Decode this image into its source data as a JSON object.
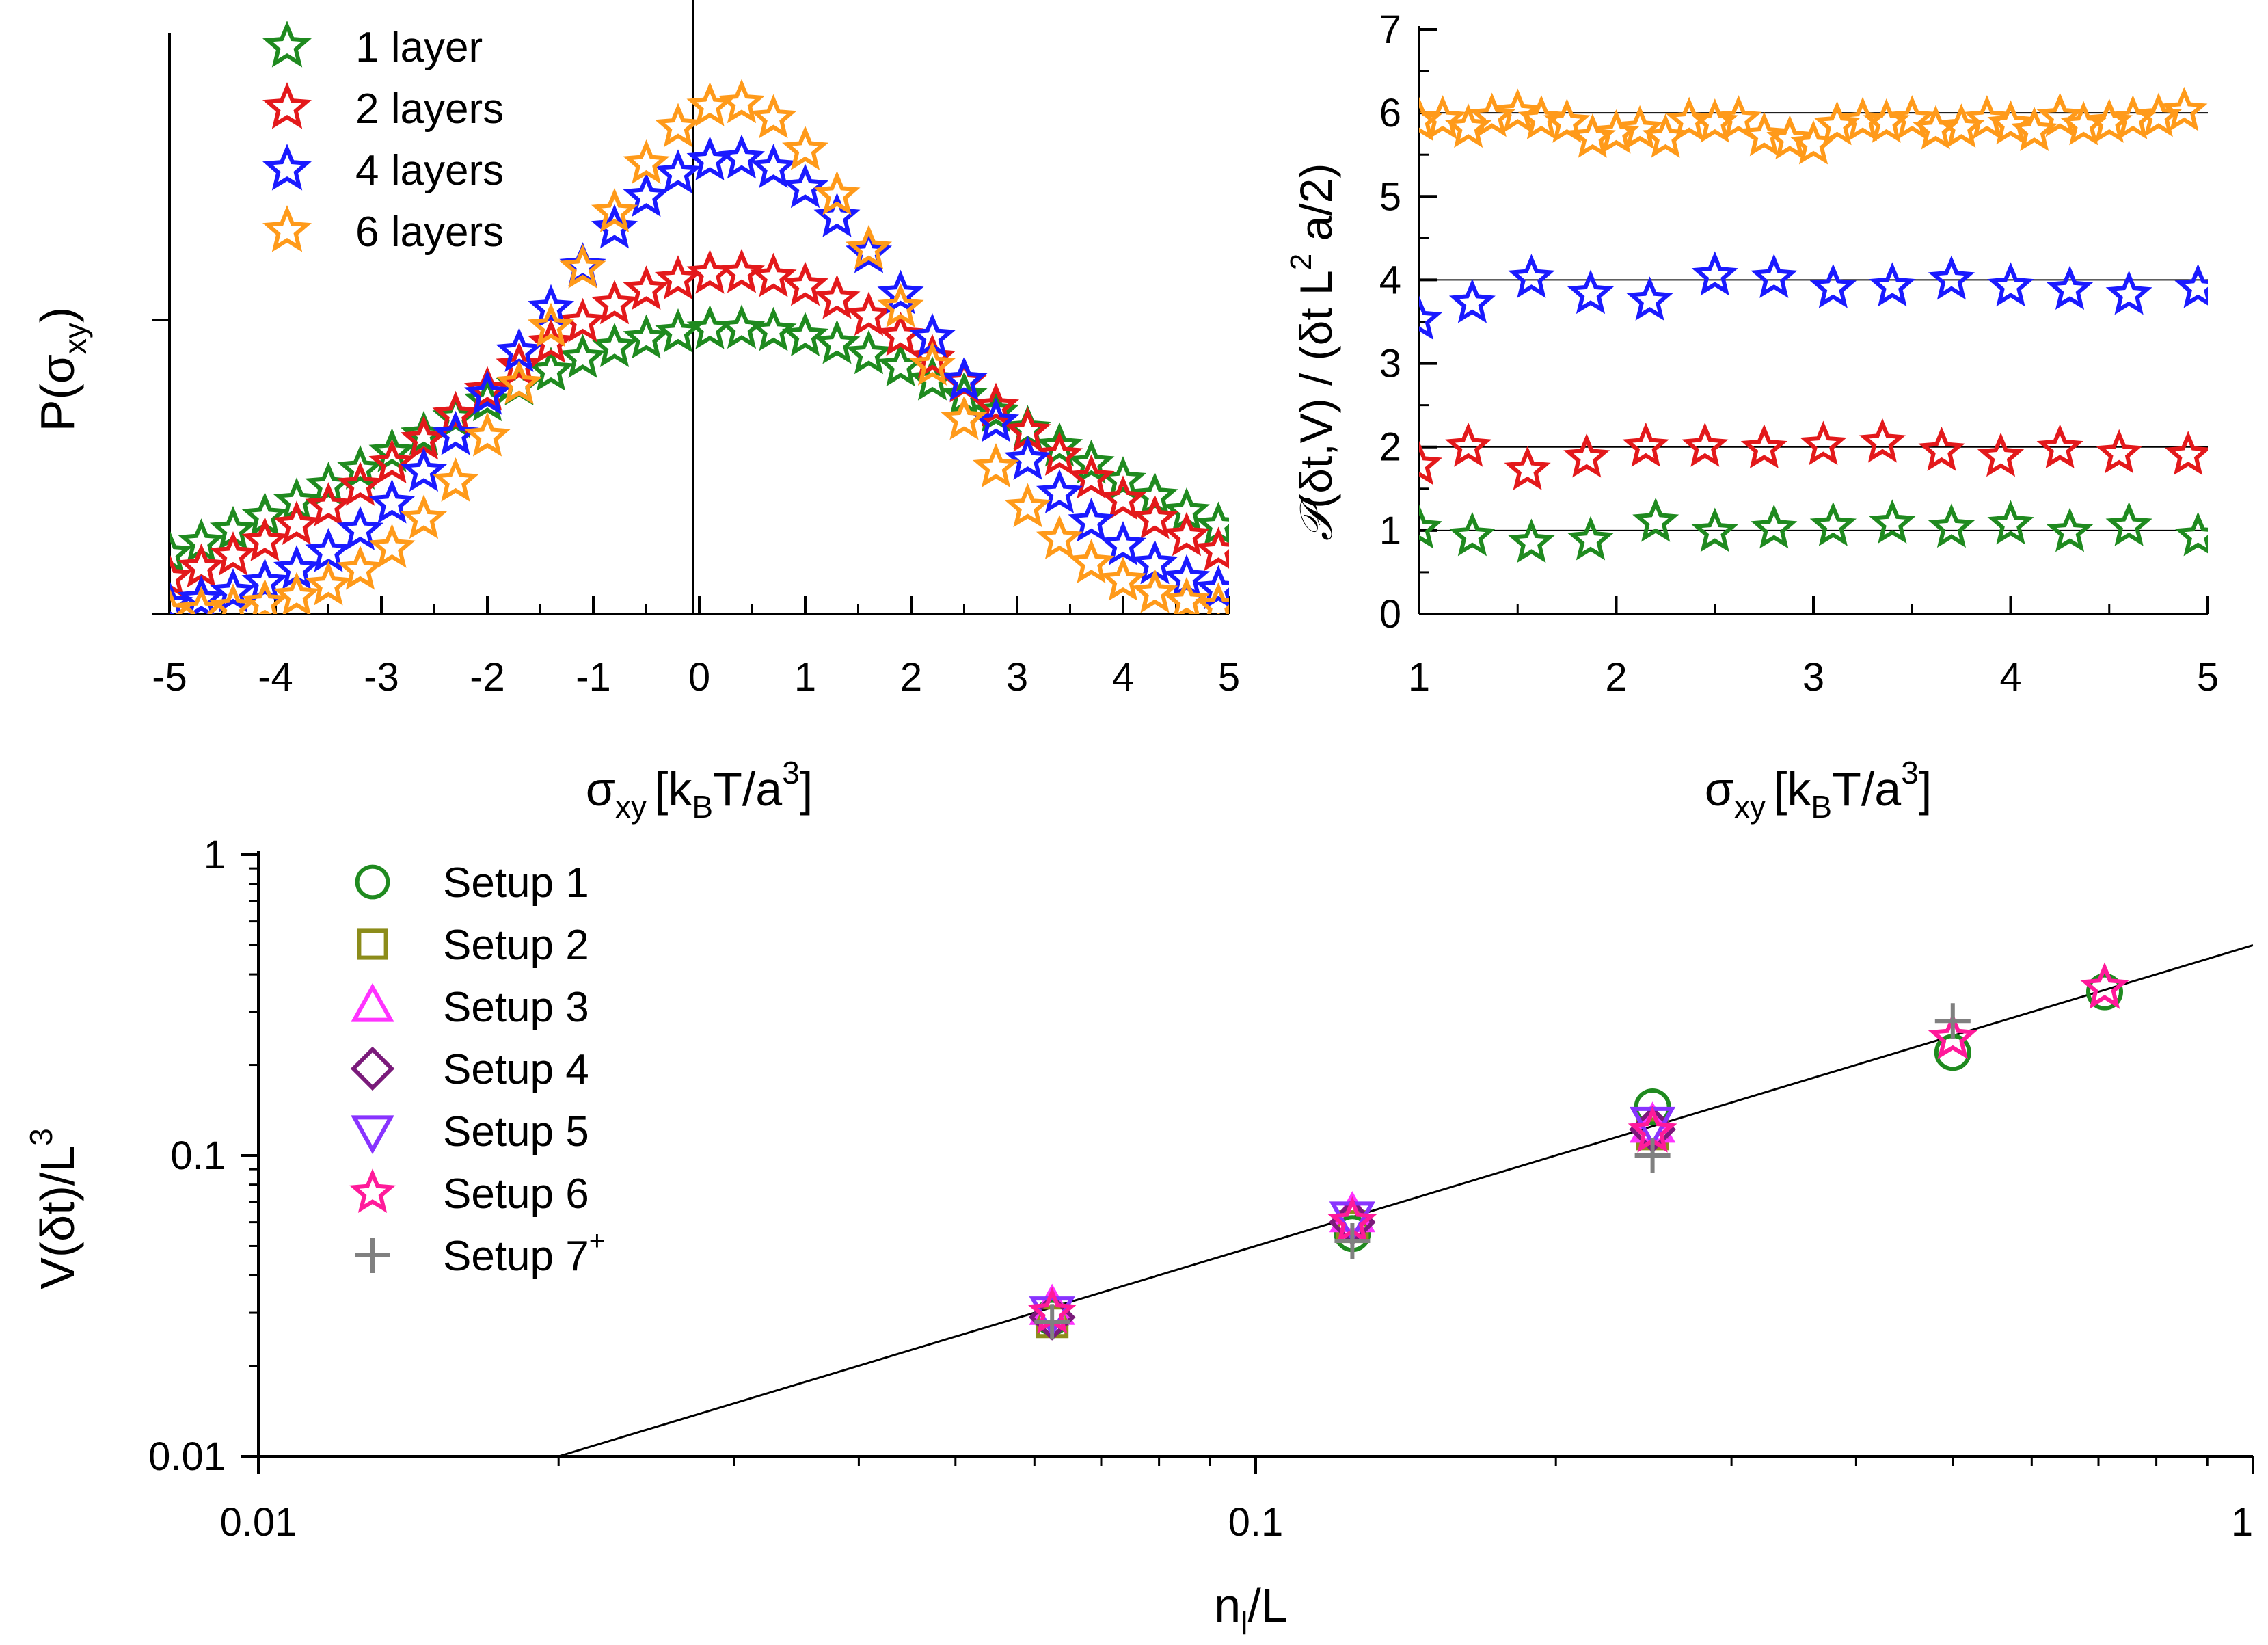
{
  "colors": {
    "green": "#1f8a1f",
    "red": "#e3191b",
    "blue": "#1a1aff",
    "orange": "#ff9a1a",
    "olive": "#8c8c1a",
    "magenta": "#ff33ff",
    "purple": "#7a1a7a",
    "violet": "#8833ff",
    "pink": "#ff1a9a",
    "gray": "#808080"
  },
  "chart_data": [
    {
      "type": "scatter",
      "panel": "top-left",
      "xlabel": "σxy [kBT/a³]",
      "xlabel_parts": {
        "sigma": "σ",
        "sigma_sub": "xy",
        "bracket_open": "[k",
        "kb_sub": "B",
        "mid": "T/a",
        "sup": "3",
        "bracket_close": "]"
      },
      "ylabel": "P(σxy)",
      "ylabel_parts": {
        "pre": "P(σ",
        "sub": "xy",
        "post": ")"
      },
      "xlim": [
        -5,
        5
      ],
      "ylim": [
        0,
        1
      ],
      "xticks": [
        "-5",
        "-4",
        "-3",
        "-2",
        "-1",
        "0",
        "1",
        "2",
        "3",
        "4",
        "5"
      ],
      "yticks_labeled": false,
      "vertical_line_at": 0,
      "legend_position": "top-left",
      "series": [
        {
          "name": "1 layer",
          "color": "green",
          "peak": 0.485,
          "sigma": 3.0,
          "mu": 0.3,
          "x_step": 0.3
        },
        {
          "name": "2 layers",
          "color": "red",
          "peak": 0.58,
          "sigma": 2.5,
          "mu": 0.3,
          "x_step": 0.3
        },
        {
          "name": "4 layers",
          "color": "blue",
          "peak": 0.775,
          "sigma": 1.9,
          "mu": 0.3,
          "x_step": 0.3
        },
        {
          "name": "6 layers",
          "color": "orange",
          "peak": 0.87,
          "sigma": 1.58,
          "mu": 0.3,
          "x_step": 0.3
        }
      ],
      "series_description": "Gaussian-shaped distributions centred near σxy≈0.3; markers every ~0.3 units from -5 to 5"
    },
    {
      "type": "scatter",
      "panel": "top-right",
      "xlabel": "σxy [kBT/a³]",
      "xlabel_parts": {
        "sigma": "σ",
        "sigma_sub": "xy",
        "bracket_open": "[k",
        "kb_sub": "B",
        "mid": "T/a",
        "sup": "3",
        "bracket_close": "]"
      },
      "ylabel": "𝒫(δt,V) / (δt L² a/2)",
      "ylabel_parts": {
        "script_p": "𝒫",
        "pre": "(δt,V) / (δt L",
        "sup": "2",
        "post": " a/2)"
      },
      "xlim": [
        1,
        5
      ],
      "ylim": [
        0,
        7
      ],
      "xticks": [
        "1",
        "2",
        "3",
        "4",
        "5"
      ],
      "yticks": [
        "0",
        "1",
        "2",
        "3",
        "4",
        "5",
        "6",
        "7"
      ],
      "reference_lines": [
        1,
        2,
        4,
        6
      ],
      "series": [
        {
          "name": "1 layer",
          "color": "green",
          "x": [
            1.0,
            1.27,
            1.57,
            1.87,
            2.2,
            2.5,
            2.8,
            3.1,
            3.4,
            3.7,
            4.0,
            4.3,
            4.6,
            4.95
          ],
          "y": [
            1.02,
            0.93,
            0.85,
            0.88,
            1.1,
            0.98,
            1.02,
            1.05,
            1.08,
            1.03,
            1.07,
            0.98,
            1.05,
            0.93
          ]
        },
        {
          "name": "2 layers",
          "color": "red",
          "x": [
            1.0,
            1.25,
            1.55,
            1.85,
            2.15,
            2.45,
            2.75,
            3.05,
            3.35,
            3.65,
            3.95,
            4.25,
            4.55,
            4.9
          ],
          "y": [
            1.78,
            2.0,
            1.72,
            1.87,
            2.0,
            2.0,
            1.98,
            2.02,
            2.05,
            1.95,
            1.88,
            1.98,
            1.92,
            1.9
          ]
        },
        {
          "name": "4 layers",
          "color": "blue",
          "x": [
            1.0,
            1.27,
            1.57,
            1.87,
            2.17,
            2.5,
            2.8,
            3.1,
            3.4,
            3.7,
            4.0,
            4.3,
            4.6,
            4.95
          ],
          "y": [
            3.52,
            3.72,
            4.02,
            3.83,
            3.75,
            4.05,
            4.02,
            3.9,
            3.92,
            4.0,
            3.92,
            3.88,
            3.82,
            3.9
          ]
        },
        {
          "name": "6 layers",
          "color": "orange",
          "x": [
            1.0,
            1.12,
            1.25,
            1.37,
            1.5,
            1.62,
            1.75,
            1.88,
            2.0,
            2.12,
            2.25,
            2.37,
            2.5,
            2.62,
            2.75,
            2.88,
            3.0,
            3.12,
            3.25,
            3.37,
            3.5,
            3.62,
            3.75,
            3.88,
            4.0,
            4.12,
            4.25,
            4.37,
            4.5,
            4.62,
            4.75,
            4.88
          ],
          "y": [
            5.9,
            5.92,
            5.82,
            5.95,
            6.0,
            5.92,
            5.88,
            5.7,
            5.75,
            5.8,
            5.7,
            5.9,
            5.88,
            5.92,
            5.72,
            5.68,
            5.62,
            5.85,
            5.9,
            5.88,
            5.92,
            5.8,
            5.82,
            5.92,
            5.86,
            5.78,
            5.95,
            5.85,
            5.88,
            5.92,
            5.95,
            6.02
          ]
        }
      ]
    },
    {
      "type": "scatter",
      "panel": "bottom",
      "xlabel": "nl/L",
      "xlabel_parts": {
        "pre": "n",
        "sub": "l",
        "post": "/L"
      },
      "ylabel": "V(δt)/L³",
      "ylabel_parts": {
        "pre": "V(δt)/L",
        "sup": "3"
      },
      "xscale": "log",
      "yscale": "log",
      "xlim": [
        0.01,
        1
      ],
      "ylim": [
        0.01,
        1
      ],
      "xticks": [
        "0.01",
        "0.1",
        "1"
      ],
      "yticks": [
        "0.01",
        "0.1",
        "1"
      ],
      "fit_line": {
        "x": [
          0.02,
          1.0
        ],
        "y": [
          0.01,
          0.5
        ]
      },
      "legend_position": "top-left",
      "series": [
        {
          "name": "Setup 1",
          "marker": "circle",
          "color": "green",
          "x": [
            0.0625,
            0.125,
            0.25,
            0.5,
            0.71
          ],
          "y": [
            0.029,
            0.055,
            0.145,
            0.22,
            0.35
          ]
        },
        {
          "name": "Setup 2",
          "marker": "square",
          "color": "olive",
          "x": [
            0.0625,
            0.125,
            0.25
          ],
          "y": [
            0.028,
            0.058,
            0.118
          ]
        },
        {
          "name": "Setup 3",
          "marker": "triangle-up",
          "color": "magenta",
          "x": [
            0.0625,
            0.125,
            0.25
          ],
          "y": [
            0.031,
            0.063,
            0.125
          ]
        },
        {
          "name": "Setup 4",
          "marker": "diamond",
          "color": "purple",
          "x": [
            0.0625,
            0.125,
            0.25
          ],
          "y": [
            0.029,
            0.06,
            0.122
          ]
        },
        {
          "name": "Setup 5",
          "marker": "triangle-down",
          "color": "violet",
          "x": [
            0.0625,
            0.125,
            0.25
          ],
          "y": [
            0.03,
            0.062,
            0.128
          ]
        },
        {
          "name": "Setup 6",
          "marker": "star",
          "color": "pink",
          "x": [
            0.0625,
            0.125,
            0.25,
            0.5,
            0.71
          ],
          "y": [
            0.03,
            0.06,
            0.12,
            0.245,
            0.36
          ]
        },
        {
          "name": "Setup 7+",
          "display": {
            "pre": "Setup 7",
            "sup": "+"
          },
          "marker": "plus",
          "color": "gray",
          "x": [
            0.0625,
            0.125,
            0.25,
            0.5
          ],
          "y": [
            0.028,
            0.052,
            0.1,
            0.28
          ]
        }
      ]
    }
  ]
}
